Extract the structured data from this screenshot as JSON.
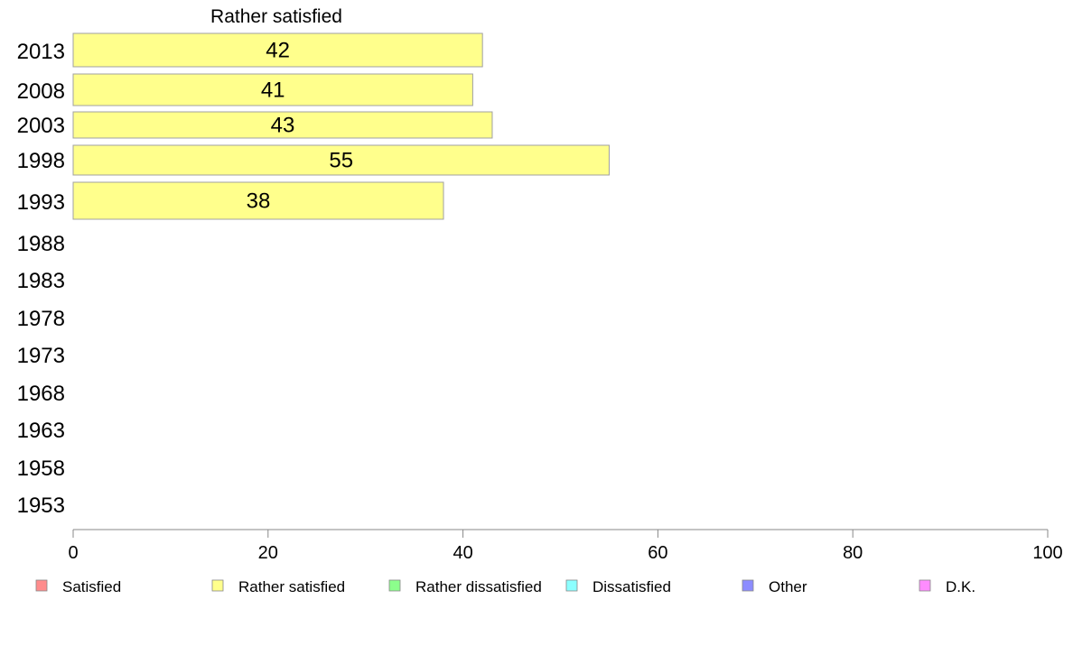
{
  "chart_data": {
    "type": "bar",
    "orientation": "horizontal",
    "title": "Rather satisfied",
    "categories": [
      "2013",
      "2008",
      "2003",
      "1998",
      "1993",
      "1988",
      "1983",
      "1978",
      "1973",
      "1968",
      "1963",
      "1958",
      "1953"
    ],
    "series": [
      {
        "name": "Rather satisfied",
        "values": [
          42,
          41,
          43,
          55,
          38,
          null,
          null,
          null,
          null,
          null,
          null,
          null,
          null
        ]
      }
    ],
    "xlim": [
      0,
      100
    ],
    "xticks": [
      0,
      20,
      40,
      60,
      80,
      100
    ],
    "grid": false,
    "legend_position": "bottom",
    "legend": [
      {
        "name": "Satisfied",
        "color": "#ff8c8c"
      },
      {
        "name": "Rather satisfied",
        "color": "#ffff8c"
      },
      {
        "name": "Rather dissatisfied",
        "color": "#8cff8c"
      },
      {
        "name": "Dissatisfied",
        "color": "#8cffff"
      },
      {
        "name": "Other",
        "color": "#8c8cff"
      },
      {
        "name": "D.K.",
        "color": "#ff8cff"
      }
    ],
    "bar_color": "#ffff8c"
  }
}
